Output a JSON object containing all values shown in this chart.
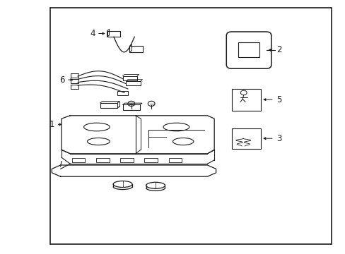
{
  "bg_color": "#ffffff",
  "line_color": "#1a1a1a",
  "fig_width": 4.89,
  "fig_height": 3.6,
  "dpi": 100,
  "border": [
    0.145,
    0.04,
    0.96,
    0.97
  ]
}
